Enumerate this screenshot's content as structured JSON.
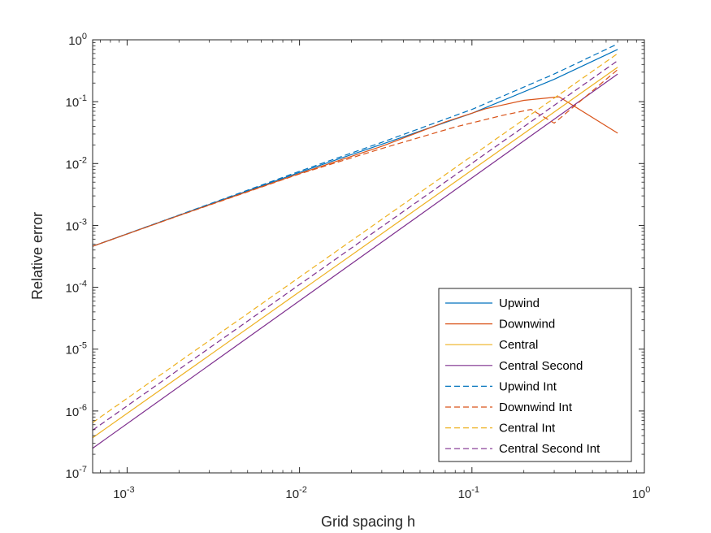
{
  "chart_data": {
    "type": "line",
    "xscale": "log",
    "yscale": "log",
    "xlabel": "Grid spacing h",
    "ylabel": "Relative error",
    "xlim": [
      0.000631,
      1
    ],
    "ylim": [
      1e-07,
      1
    ],
    "xticks": [
      {
        "value": 0.001,
        "base": "10",
        "exp": "-3"
      },
      {
        "value": 0.01,
        "base": "10",
        "exp": "-2"
      },
      {
        "value": 0.1,
        "base": "10",
        "exp": "-1"
      },
      {
        "value": 1,
        "base": "10",
        "exp": "0"
      }
    ],
    "yticks": [
      {
        "value": 1e-07,
        "base": "10",
        "exp": "-7"
      },
      {
        "value": 1e-06,
        "base": "10",
        "exp": "-6"
      },
      {
        "value": 1e-05,
        "base": "10",
        "exp": "-5"
      },
      {
        "value": 0.0001,
        "base": "10",
        "exp": "-4"
      },
      {
        "value": 0.001,
        "base": "10",
        "exp": "-3"
      },
      {
        "value": 0.01,
        "base": "10",
        "exp": "-2"
      },
      {
        "value": 0.1,
        "base": "10",
        "exp": "-1"
      },
      {
        "value": 1,
        "base": "10",
        "exp": "0"
      }
    ],
    "grid": false,
    "legend_position": "bottom-right",
    "series": [
      {
        "name": "Upwind",
        "color": "#0072BD",
        "dash": "solid",
        "x": [
          0.000631,
          0.002,
          0.01,
          0.03,
          0.1,
          0.3,
          0.7
        ],
        "y": [
          0.00046,
          0.00146,
          0.0072,
          0.0205,
          0.065,
          0.23,
          0.7
        ]
      },
      {
        "name": "Downwind",
        "color": "#D95319",
        "dash": "solid",
        "x": [
          0.000631,
          0.002,
          0.01,
          0.03,
          0.07,
          0.12,
          0.2,
          0.32,
          0.7
        ],
        "y": [
          0.00046,
          0.00145,
          0.0069,
          0.019,
          0.047,
          0.077,
          0.105,
          0.12,
          0.031
        ]
      },
      {
        "name": "Central",
        "color": "#EDB120",
        "dash": "solid",
        "x": [
          0.000631,
          0.7
        ],
        "y": [
          3.7e-07,
          0.36
        ]
      },
      {
        "name": "Central Second",
        "color": "#7E2F8E",
        "dash": "solid",
        "x": [
          0.000631,
          0.7
        ],
        "y": [
          2.5e-07,
          0.28
        ]
      },
      {
        "name": "Upwind Int",
        "color": "#0072BD",
        "dash": "dashed",
        "x": [
          0.000631,
          0.002,
          0.01,
          0.03,
          0.1,
          0.3,
          0.7
        ],
        "y": [
          0.00046,
          0.00147,
          0.0075,
          0.022,
          0.075,
          0.28,
          0.86
        ]
      },
      {
        "name": "Downwind Int",
        "color": "#D95319",
        "dash": "dashed",
        "x": [
          0.000631,
          0.002,
          0.01,
          0.03,
          0.08,
          0.15,
          0.22,
          0.3,
          0.7
        ],
        "y": [
          0.00046,
          0.00144,
          0.0068,
          0.0175,
          0.039,
          0.06,
          0.075,
          0.045,
          0.33
        ]
      },
      {
        "name": "Central Int",
        "color": "#EDB120",
        "dash": "dashed",
        "x": [
          0.000631,
          0.7
        ],
        "y": [
          6.5e-07,
          0.6
        ]
      },
      {
        "name": "Central Second Int",
        "color": "#7E2F8E",
        "dash": "dashed",
        "x": [
          0.000631,
          0.7
        ],
        "y": [
          4.9e-07,
          0.46
        ]
      }
    ]
  }
}
